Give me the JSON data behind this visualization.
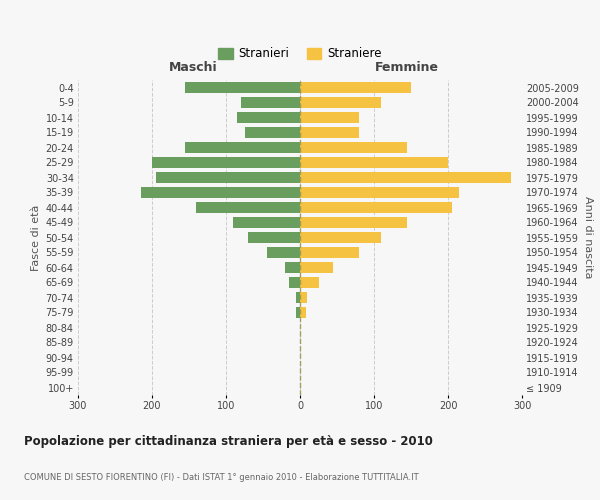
{
  "age_groups": [
    "100+",
    "95-99",
    "90-94",
    "85-89",
    "80-84",
    "75-79",
    "70-74",
    "65-69",
    "60-64",
    "55-59",
    "50-54",
    "45-49",
    "40-44",
    "35-39",
    "30-34",
    "25-29",
    "20-24",
    "15-19",
    "10-14",
    "5-9",
    "0-4"
  ],
  "birth_years": [
    "≤ 1909",
    "1910-1914",
    "1915-1919",
    "1920-1924",
    "1925-1929",
    "1930-1934",
    "1935-1939",
    "1940-1944",
    "1945-1949",
    "1950-1954",
    "1955-1959",
    "1960-1964",
    "1965-1969",
    "1970-1974",
    "1975-1979",
    "1980-1984",
    "1985-1989",
    "1990-1994",
    "1995-1999",
    "2000-2004",
    "2005-2009"
  ],
  "maschi": [
    0,
    0,
    0,
    0,
    0,
    5,
    6,
    15,
    20,
    45,
    70,
    90,
    140,
    215,
    195,
    200,
    155,
    75,
    85,
    80,
    155
  ],
  "femmine": [
    0,
    0,
    0,
    0,
    0,
    8,
    10,
    25,
    45,
    80,
    110,
    145,
    205,
    215,
    285,
    200,
    145,
    80,
    80,
    110,
    150
  ],
  "color_maschi": "#6a9e5e",
  "color_femmine": "#f5c242",
  "title": "Popolazione per cittadinanza straniera per età e sesso - 2010",
  "subtitle": "COMUNE DI SESTO FIORENTINO (FI) - Dati ISTAT 1° gennaio 2010 - Elaborazione TUTTITALIA.IT",
  "xlabel_left": "Maschi",
  "xlabel_right": "Femmine",
  "ylabel_left": "Fasce di età",
  "ylabel_right": "Anni di nascita",
  "legend_maschi": "Stranieri",
  "legend_femmine": "Straniere",
  "xlim": 300,
  "background_color": "#f7f7f7",
  "grid_color": "#cccccc",
  "bar_height": 0.75
}
